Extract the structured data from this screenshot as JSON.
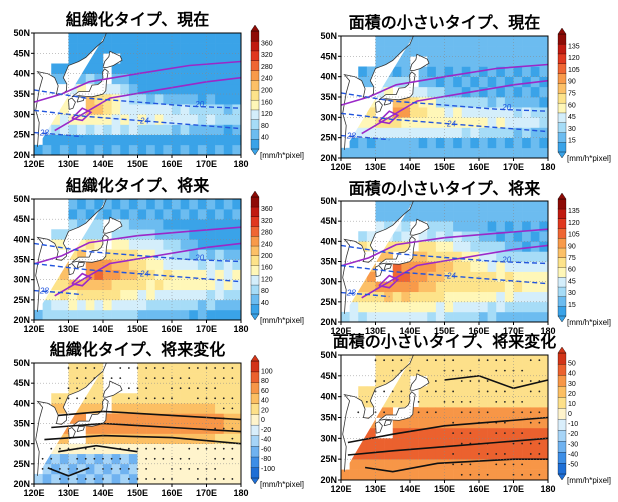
{
  "chart_data": [
    {
      "type": "heatmap",
      "title": "組織化タイプ、現在",
      "xticks": [
        "120E",
        "130E",
        "140E",
        "150E",
        "160E",
        "170E",
        "180"
      ],
      "yticks": [
        "20N",
        "25N",
        "30N",
        "35N",
        "40N",
        "45N",
        "50N"
      ],
      "xlim": [
        120,
        180
      ],
      "ylim": [
        20,
        50
      ],
      "colorbar": {
        "ticks": [
          "40",
          "80",
          "120",
          "160",
          "200",
          "240",
          "280",
          "320",
          "360"
        ],
        "unit": "[mm/h*pixel]",
        "min": 0,
        "max": 360
      },
      "contour_labels": [
        "20",
        "24",
        "28"
      ]
    },
    {
      "type": "heatmap",
      "title": "面積の小さいタイプ、現在",
      "xticks": [
        "120E",
        "130E",
        "140E",
        "150E",
        "160E",
        "170E",
        "180"
      ],
      "yticks": [
        "20N",
        "25N",
        "30N",
        "35N",
        "40N",
        "45N",
        "50N"
      ],
      "xlim": [
        120,
        180
      ],
      "ylim": [
        20,
        50
      ],
      "colorbar": {
        "ticks": [
          "15",
          "30",
          "45",
          "60",
          "75",
          "90",
          "105",
          "120",
          "135"
        ],
        "unit": "[mm/h*pixel]",
        "min": 0,
        "max": 135
      },
      "contour_labels": [
        "20",
        "24",
        "28"
      ]
    },
    {
      "type": "heatmap",
      "title": "組織化タイプ、将来",
      "xticks": [
        "120E",
        "130E",
        "140E",
        "150E",
        "160E",
        "170E",
        "180"
      ],
      "yticks": [
        "20N",
        "25N",
        "30N",
        "35N",
        "40N",
        "45N",
        "50N"
      ],
      "xlim": [
        120,
        180
      ],
      "ylim": [
        20,
        50
      ],
      "colorbar": {
        "ticks": [
          "40",
          "80",
          "120",
          "160",
          "200",
          "240",
          "280",
          "320",
          "360"
        ],
        "unit": "[mm/h*pixel]",
        "min": 0,
        "max": 360
      },
      "contour_labels": [
        "20",
        "24",
        "28"
      ]
    },
    {
      "type": "heatmap",
      "title": "面積の小さいタイプ、将来",
      "xticks": [
        "120E",
        "130E",
        "140E",
        "150E",
        "160E",
        "170E",
        "180"
      ],
      "yticks": [
        "20N",
        "25N",
        "30N",
        "35N",
        "40N",
        "45N",
        "50N"
      ],
      "xlim": [
        120,
        180
      ],
      "ylim": [
        20,
        50
      ],
      "colorbar": {
        "ticks": [
          "15",
          "30",
          "45",
          "60",
          "75",
          "90",
          "105",
          "120",
          "135"
        ],
        "unit": "[mm/h*pixel]",
        "min": 0,
        "max": 135
      },
      "contour_labels": [
        "20",
        "24",
        "28"
      ]
    },
    {
      "type": "heatmap",
      "title": "組織化タイプ、将来変化",
      "xticks": [
        "120E",
        "130E",
        "140E",
        "150E",
        "160E",
        "170E",
        "180"
      ],
      "yticks": [
        "20N",
        "25N",
        "30N",
        "35N",
        "40N",
        "45N",
        "50N"
      ],
      "xlim": [
        120,
        180
      ],
      "ylim": [
        20,
        50
      ],
      "colorbar": {
        "ticks": [
          "-100",
          "-80",
          "-60",
          "-40",
          "-20",
          "0",
          "20",
          "40",
          "60",
          "80",
          "100"
        ],
        "unit": "[mm/h*pixel]",
        "min": -100,
        "max": 100
      },
      "contour_labels": []
    },
    {
      "type": "heatmap",
      "title": "面積の小さいタイプ、将来変化",
      "xticks": [
        "120E",
        "130E",
        "140E",
        "150E",
        "160E",
        "170E",
        "180"
      ],
      "yticks": [
        "20N",
        "25N",
        "30N",
        "35N",
        "40N",
        "45N",
        "50N"
      ],
      "xlim": [
        120,
        180
      ],
      "ylim": [
        20,
        50
      ],
      "colorbar": {
        "ticks": [
          "-50",
          "-40",
          "-30",
          "-20",
          "-10",
          "0",
          "10",
          "20",
          "30",
          "40",
          "50"
        ],
        "unit": "[mm/h*pixel]",
        "min": -50,
        "max": 50
      },
      "contour_labels": []
    }
  ]
}
